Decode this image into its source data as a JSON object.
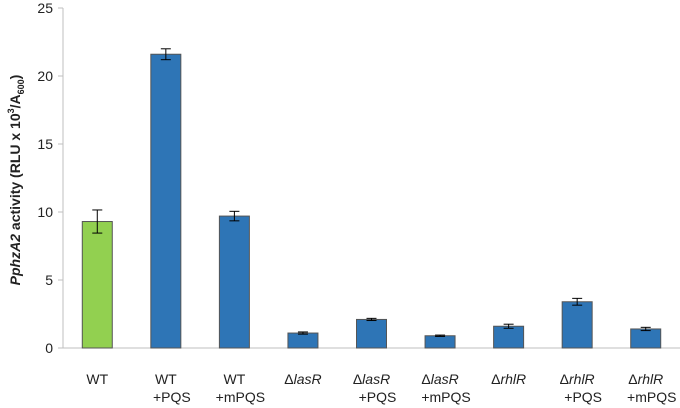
{
  "chart_data": {
    "type": "bar",
    "title": "",
    "xlabel": "",
    "ylabel": {
      "prefix_italic": "PphzA2",
      "main": " activity (RLU x 10",
      "sup": "3",
      "mid": "/A",
      "sub": "600",
      "end": ")"
    },
    "ylim": [
      0,
      25
    ],
    "yticks": [
      0,
      5,
      10,
      15,
      20,
      25
    ],
    "grid": false,
    "legend": "none",
    "categories": [
      {
        "delta": "",
        "gene": "",
        "strain": "WT",
        "treatment": ""
      },
      {
        "delta": "",
        "gene": "",
        "strain": "WT",
        "treatment": "+PQS"
      },
      {
        "delta": "",
        "gene": "",
        "strain": "WT",
        "treatment": "+mPQS"
      },
      {
        "delta": "Δ",
        "gene": "lasR",
        "strain": "",
        "treatment": ""
      },
      {
        "delta": "Δ",
        "gene": "lasR",
        "strain": "",
        "treatment": "+PQS"
      },
      {
        "delta": "Δ",
        "gene": "lasR",
        "strain": "",
        "treatment": "+mPQS"
      },
      {
        "delta": "Δ",
        "gene": "rhlR",
        "strain": "",
        "treatment": ""
      },
      {
        "delta": "Δ",
        "gene": "rhlR",
        "strain": "",
        "treatment": "+PQS"
      },
      {
        "delta": "Δ",
        "gene": "rhlR",
        "strain": "",
        "treatment": "+mPQS"
      }
    ],
    "values": [
      9.3,
      21.6,
      9.7,
      1.1,
      2.1,
      0.9,
      1.6,
      3.4,
      1.4
    ],
    "errors": [
      0.85,
      0.4,
      0.35,
      0.08,
      0.08,
      0.05,
      0.15,
      0.25,
      0.12
    ],
    "colors": [
      "#92d050",
      "#2e75b6",
      "#2e75b6",
      "#2e75b6",
      "#2e75b6",
      "#2e75b6",
      "#2e75b6",
      "#2e75b6",
      "#2e75b6"
    ],
    "bar_stroke": "#555555",
    "axis_color": "#bfbfbf"
  }
}
